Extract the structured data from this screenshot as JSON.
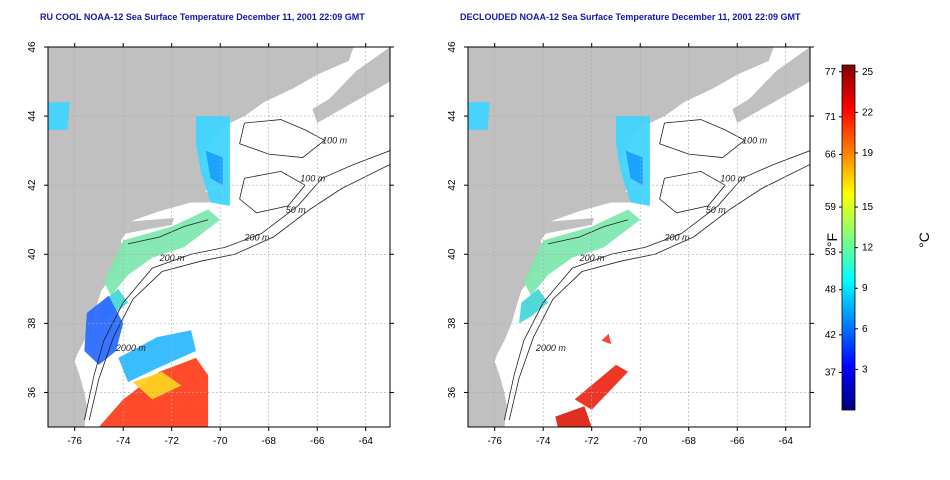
{
  "panels": [
    {
      "title": "RU COOL NOAA-12 Sea Surface Temperature December 11, 2001 22:09 GMT",
      "x_ticks": [
        "-76",
        "-74",
        "-72",
        "-70",
        "-68",
        "-66",
        "-64"
      ],
      "y_ticks": [
        "36",
        "38",
        "40",
        "42",
        "44",
        "46"
      ],
      "contour_labels": [
        "100 m",
        "100 m",
        "50 m",
        "200 m",
        "200 m",
        "2000 m"
      ]
    },
    {
      "title": "DECLOUDED NOAA-12 Sea Surface Temperature December 11, 2001 22:09 GMT",
      "x_ticks": [
        "-76",
        "-74",
        "-72",
        "-70",
        "-68",
        "-66",
        "-64"
      ],
      "y_ticks": [
        "36",
        "38",
        "40",
        "42",
        "44",
        "46"
      ],
      "contour_labels": [
        "100 m",
        "100 m",
        "50 m",
        "200 m",
        "200 m",
        "2000 m"
      ]
    }
  ],
  "colorbar": {
    "unit_left": "°F",
    "unit_right": "°C",
    "f_ticks": [
      "77",
      "71",
      "66",
      "59",
      "53",
      "48",
      "42",
      "37"
    ],
    "c_ticks": [
      "25",
      "22",
      "19",
      "15",
      "12",
      "9",
      "6",
      "3"
    ],
    "colors": [
      "#00007f",
      "#0000ff",
      "#007fff",
      "#00ffff",
      "#7fff7f",
      "#ffff00",
      "#ff7f00",
      "#ff0000",
      "#7f0000"
    ]
  },
  "colors": {
    "land": "#c0c0c0",
    "ocean": "#ffffff",
    "title": "#1515a8",
    "grid": "#aaaaaa"
  }
}
